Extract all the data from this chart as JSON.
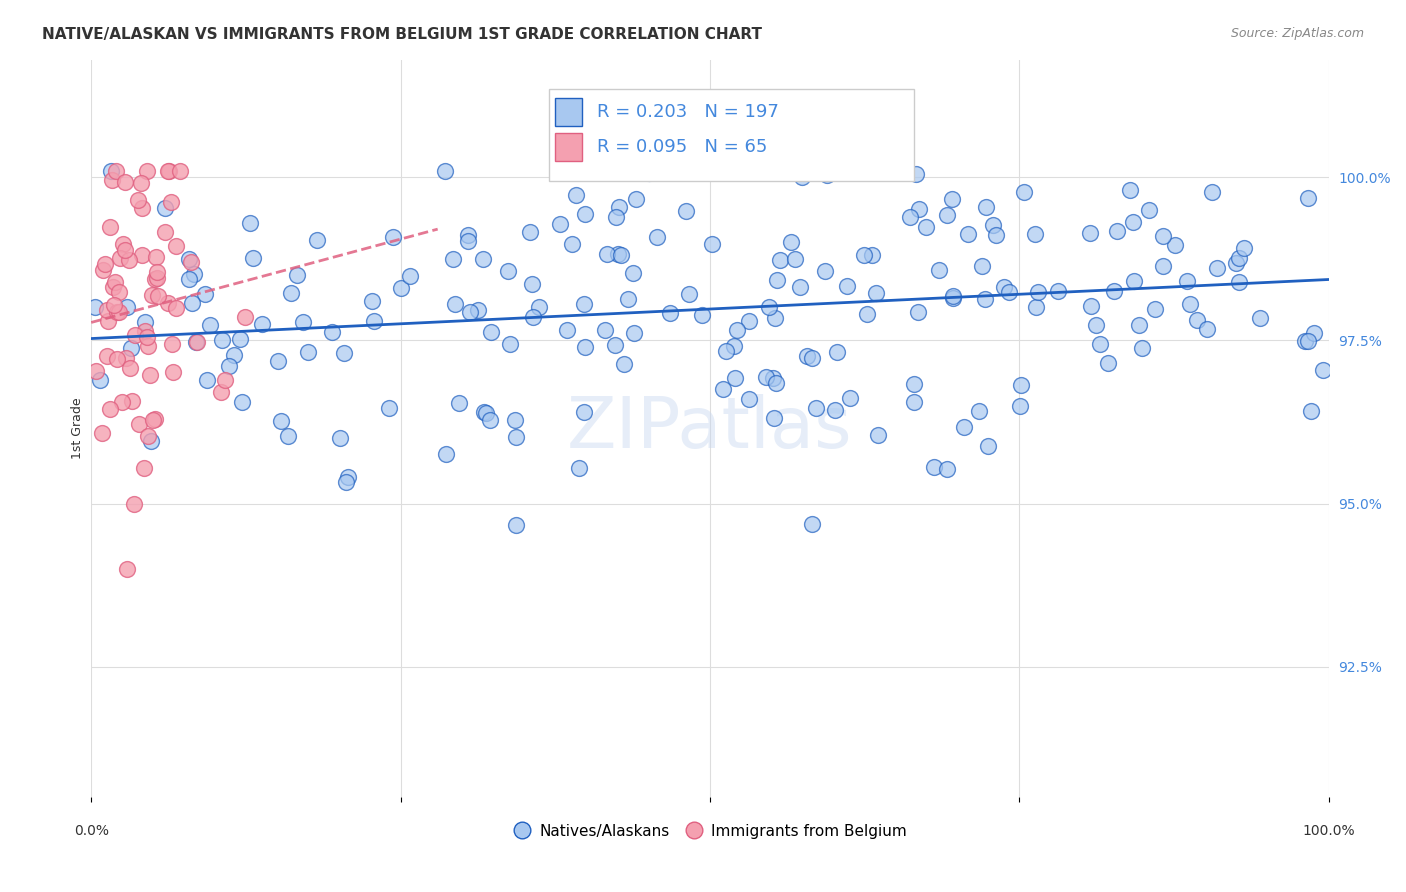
{
  "title": "NATIVE/ALASKAN VS IMMIGRANTS FROM BELGIUM 1ST GRADE CORRELATION CHART",
  "source": "Source: ZipAtlas.com",
  "ylabel": "1st Grade",
  "ytick_labels": [
    "92.5%",
    "95.0%",
    "97.5%",
    "100.0%"
  ],
  "ytick_values": [
    0.925,
    0.95,
    0.975,
    1.0
  ],
  "xmin": 0.0,
  "xmax": 1.0,
  "ymin": 0.905,
  "ymax": 1.018,
  "blue_R": 0.203,
  "blue_N": 197,
  "pink_R": 0.095,
  "pink_N": 65,
  "blue_color": "#a8c8f0",
  "pink_color": "#f4a0b0",
  "blue_line_color": "#2060c0",
  "pink_line_color": "#e06080",
  "legend_R_color": "#4488dd",
  "background_color": "#ffffff",
  "title_fontsize": 11,
  "source_fontsize": 9,
  "legend_fontsize": 13,
  "axis_label_fontsize": 9
}
